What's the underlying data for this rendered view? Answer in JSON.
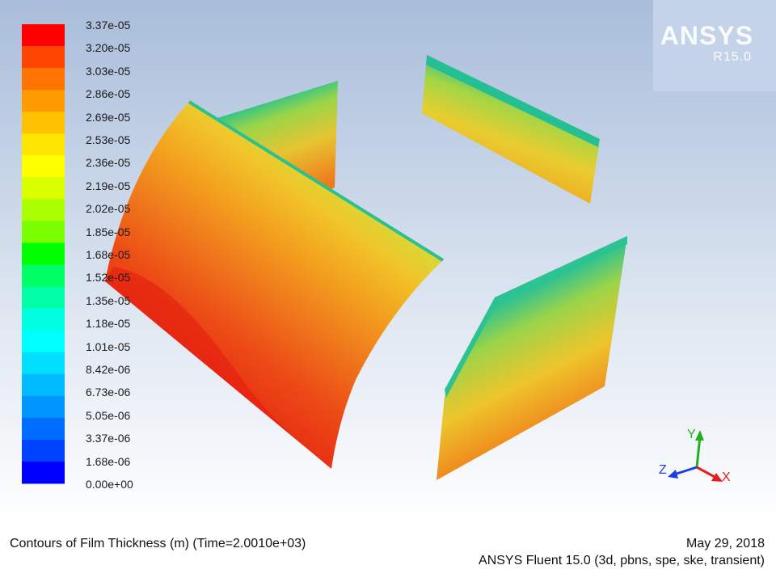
{
  "legend": {
    "labels": [
      "3.37e-05",
      "3.20e-05",
      "3.03e-05",
      "2.86e-05",
      "2.69e-05",
      "2.53e-05",
      "2.36e-05",
      "2.19e-05",
      "2.02e-05",
      "1.85e-05",
      "1.68e-05",
      "1.52e-05",
      "1.35e-05",
      "1.18e-05",
      "1.01e-05",
      "8.42e-06",
      "6.73e-06",
      "5.05e-06",
      "3.37e-06",
      "1.68e-06",
      "0.00e+00"
    ],
    "colors": [
      "#ff0000",
      "#ff4500",
      "#ff7300",
      "#ff9a00",
      "#ffc200",
      "#ffe600",
      "#ffff00",
      "#d9ff00",
      "#aaff00",
      "#7aff00",
      "#00ff00",
      "#00ff64",
      "#00ffa6",
      "#00ffe0",
      "#00ffff",
      "#00dfff",
      "#00bbff",
      "#0096ff",
      "#006dff",
      "#0043ff",
      "#0000ff"
    ]
  },
  "logo": {
    "name": "ANSYS",
    "version": "R15.0"
  },
  "axes": {
    "x": "X",
    "y": "Y",
    "z": "Z"
  },
  "footer": {
    "title": "Contours of Film Thickness (m)  (Time=2.0010e+03)",
    "date": "May 29, 2018",
    "solver": "ANSYS Fluent 15.0 (3d, pbns, spe, ske, transient)"
  }
}
